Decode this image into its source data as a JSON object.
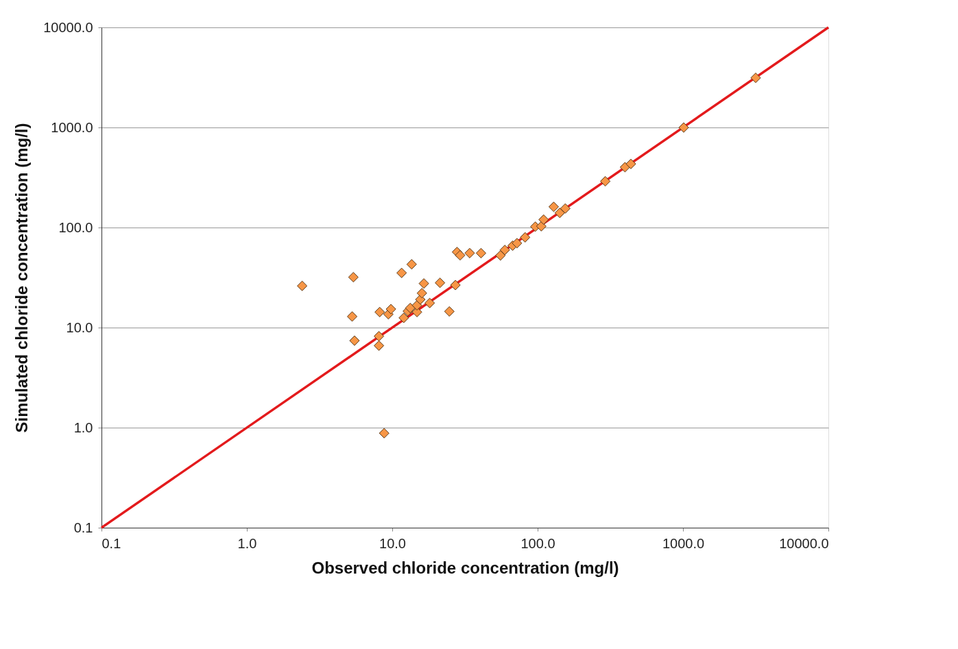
{
  "chart_data": {
    "type": "scatter",
    "xlabel": "Observed chloride concentration (mg/l)",
    "ylabel": "Simulated chloride concentration (mg/l)",
    "log": "xy",
    "grid": "y",
    "marker": "diamond",
    "xlim": [
      0.1,
      10000
    ],
    "ylim": [
      0.1,
      10000
    ],
    "xticks": [
      0.1,
      {
        "value": 1,
        "label": "1.0"
      },
      {
        "value": 10,
        "label": "10.0"
      },
      {
        "value": 100,
        "label": "100.0"
      },
      {
        "value": 1000,
        "label": "1000.0"
      },
      {
        "value": 10000,
        "label": "10000.0"
      }
    ],
    "yticks": [
      0.1,
      {
        "value": 1,
        "label": "1.0"
      },
      {
        "value": 10,
        "label": "10.0"
      },
      {
        "value": 100,
        "label": "100.0"
      },
      {
        "value": 1000,
        "label": "1000.0"
      },
      {
        "value": 10000,
        "label": "10000.0"
      }
    ],
    "series": [
      {
        "type": "line",
        "color": "#e31a1c",
        "marker": "none",
        "line_style": "solid",
        "x": [
          0.1,
          10000
        ],
        "values": [
          0.1,
          10000
        ]
      },
      {
        "color": "#f79646",
        "x": [
          2.4,
          5.4,
          5.3,
          5.5,
          8.2,
          8.1,
          8.1,
          9.4,
          9.8,
          11.6,
          13.6,
          12.0,
          12.8,
          13.3,
          14.8,
          14.8,
          15.6,
          16.0,
          16.5,
          18.1,
          21.3,
          24.7,
          27.2,
          27.9,
          29.3,
          34.1,
          40.8,
          55.5,
          59.5,
          67.3,
          72.1,
          82.0,
          96.4,
          106,
          110,
          129,
          142,
          155,
          8.8,
          292,
          399,
          438,
          1011,
          3162
        ],
        "values": [
          26.1,
          31.9,
          12.9,
          7.4,
          14.3,
          8.2,
          6.6,
          13.6,
          15.3,
          35.2,
          42.9,
          12.5,
          14.6,
          15.7,
          14.3,
          16.7,
          19.1,
          22.1,
          27.6,
          17.6,
          28.0,
          14.5,
          26.6,
          56.9,
          52.8,
          55.5,
          55.5,
          52.6,
          59.7,
          65.9,
          69.8,
          79.8,
          102,
          103,
          120,
          161,
          140,
          155,
          0.88,
          290,
          401,
          432,
          998,
          3133
        ]
      }
    ]
  }
}
